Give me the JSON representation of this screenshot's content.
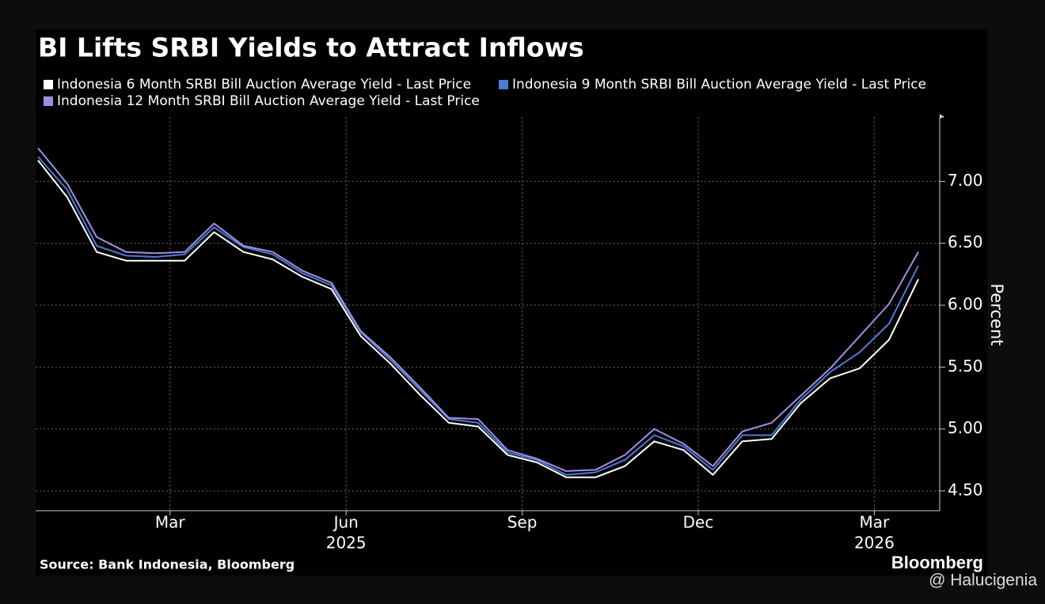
{
  "chart_data": {
    "type": "line",
    "title": "BI Lifts SRBI Yields to Attract Inflows",
    "y_label": "Percent",
    "source": "Source: Bank Indonesia, Bloomberg",
    "brand": "Bloomberg",
    "watermark": "@ Halucigenia",
    "x": [
      "2025-01",
      "2025-01",
      "2025-02",
      "2025-02",
      "2025-03",
      "2025-03",
      "2025-04",
      "2025-04",
      "2025-05",
      "2025-05",
      "2025-06",
      "2025-06",
      "2025-07",
      "2025-07",
      "2025-08",
      "2025-08",
      "2025-09",
      "2025-09",
      "2025-10",
      "2025-10",
      "2025-11",
      "2025-11",
      "2025-12",
      "2025-12",
      "2026-01",
      "2026-01",
      "2026-02",
      "2026-02",
      "2026-03",
      "2026-03",
      "2026-04"
    ],
    "series": [
      {
        "name": "Indonesia 6 Month SRBI Bill Auction Average Yield - Last Price",
        "color": "#ffffff",
        "values": [
          7.17,
          6.87,
          6.43,
          6.36,
          6.36,
          6.36,
          6.59,
          6.43,
          6.37,
          6.23,
          6.13,
          5.75,
          5.53,
          5.28,
          5.05,
          5.02,
          4.79,
          4.73,
          4.61,
          4.61,
          4.7,
          4.9,
          4.83,
          4.63,
          4.9,
          4.92,
          5.21,
          5.41,
          5.49,
          5.72,
          6.21
        ]
      },
      {
        "name": "Indonesia 9 Month SRBI Bill Auction Average Yield - Last Price",
        "color": "#4a7bd6",
        "values": [
          7.2,
          6.93,
          6.48,
          6.4,
          6.39,
          6.41,
          6.63,
          6.47,
          6.41,
          6.26,
          6.16,
          5.78,
          5.56,
          5.32,
          5.08,
          5.05,
          4.81,
          4.75,
          4.63,
          4.65,
          4.75,
          4.95,
          4.86,
          4.67,
          4.95,
          4.95,
          5.24,
          5.46,
          5.62,
          5.85,
          6.32
        ]
      },
      {
        "name": "Indonesia 12 Month SRBI Bill Auction Average Yield - Last Price",
        "color": "#a58ee0",
        "values": [
          7.27,
          6.98,
          6.55,
          6.43,
          6.42,
          6.43,
          6.66,
          6.48,
          6.43,
          6.28,
          6.18,
          5.79,
          5.58,
          5.34,
          5.09,
          5.08,
          4.83,
          4.76,
          4.66,
          4.67,
          4.79,
          5.0,
          4.88,
          4.7,
          4.98,
          5.05,
          5.27,
          5.49,
          5.75,
          6.01,
          6.43
        ]
      }
    ],
    "ylim": [
      4.34,
      7.52
    ],
    "yticks": [
      {
        "value": 4.5,
        "label": "4.50"
      },
      {
        "value": 5,
        "label": "5.00"
      },
      {
        "value": 5.5,
        "label": "5.50"
      },
      {
        "value": 6,
        "label": "6.00"
      },
      {
        "value": 6.5,
        "label": "6.50"
      },
      {
        "value": 7,
        "label": "7.00"
      }
    ],
    "xticks": [
      {
        "value": "2025-03",
        "label": "Mar"
      },
      {
        "value": "2025-06",
        "label": "Jun"
      },
      {
        "value": "2025-09",
        "label": "Sep"
      },
      {
        "value": "2025-12",
        "label": "Dec"
      },
      {
        "value": "2026-03",
        "label": "Mar"
      }
    ],
    "x_year_labels": [
      {
        "value": "2025-06",
        "label": "2025"
      },
      {
        "value": "2026-03",
        "label": "2026"
      }
    ],
    "grid": true
  }
}
